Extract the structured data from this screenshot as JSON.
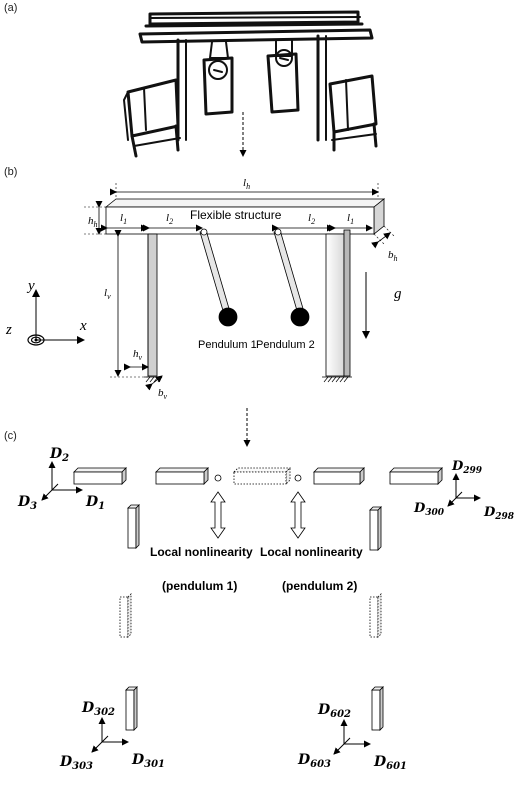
{
  "panels": {
    "a": {
      "label": "(a)"
    },
    "b": {
      "label": "(b)"
    },
    "c": {
      "label": "(c)"
    }
  },
  "structure": {
    "title": "Flexible structure",
    "pendulum1": "Pendulum 1",
    "pendulum2": "Pendulum 2"
  },
  "dimensions": {
    "lh": "l",
    "lh_sub": "h",
    "hh": "h",
    "hh_sub": "h",
    "l1": "l",
    "l1_sub": "1",
    "l2": "l",
    "l2_sub": "2",
    "bh": "b",
    "bh_sub": "h",
    "lv": "l",
    "lv_sub": "v",
    "hv": "h",
    "hv_sub": "v",
    "bv": "b",
    "bv_sub": "v",
    "gravity": "g"
  },
  "axes": {
    "x": "x",
    "y": "y",
    "z": "z"
  },
  "dofs": {
    "D1": "1",
    "D2": "2",
    "D3": "3",
    "D298": "298",
    "D299": "299",
    "D300": "300",
    "D301": "301",
    "D302": "302",
    "D303": "303",
    "D601": "601",
    "D602": "602",
    "D603": "603",
    "prefix": "D"
  },
  "nonlinearity": {
    "left_title": "Local nonlinearity",
    "left_sub": "(pendulum 1)",
    "right_title": "Local nonlinearity",
    "right_sub": "(pendulum 2)"
  }
}
